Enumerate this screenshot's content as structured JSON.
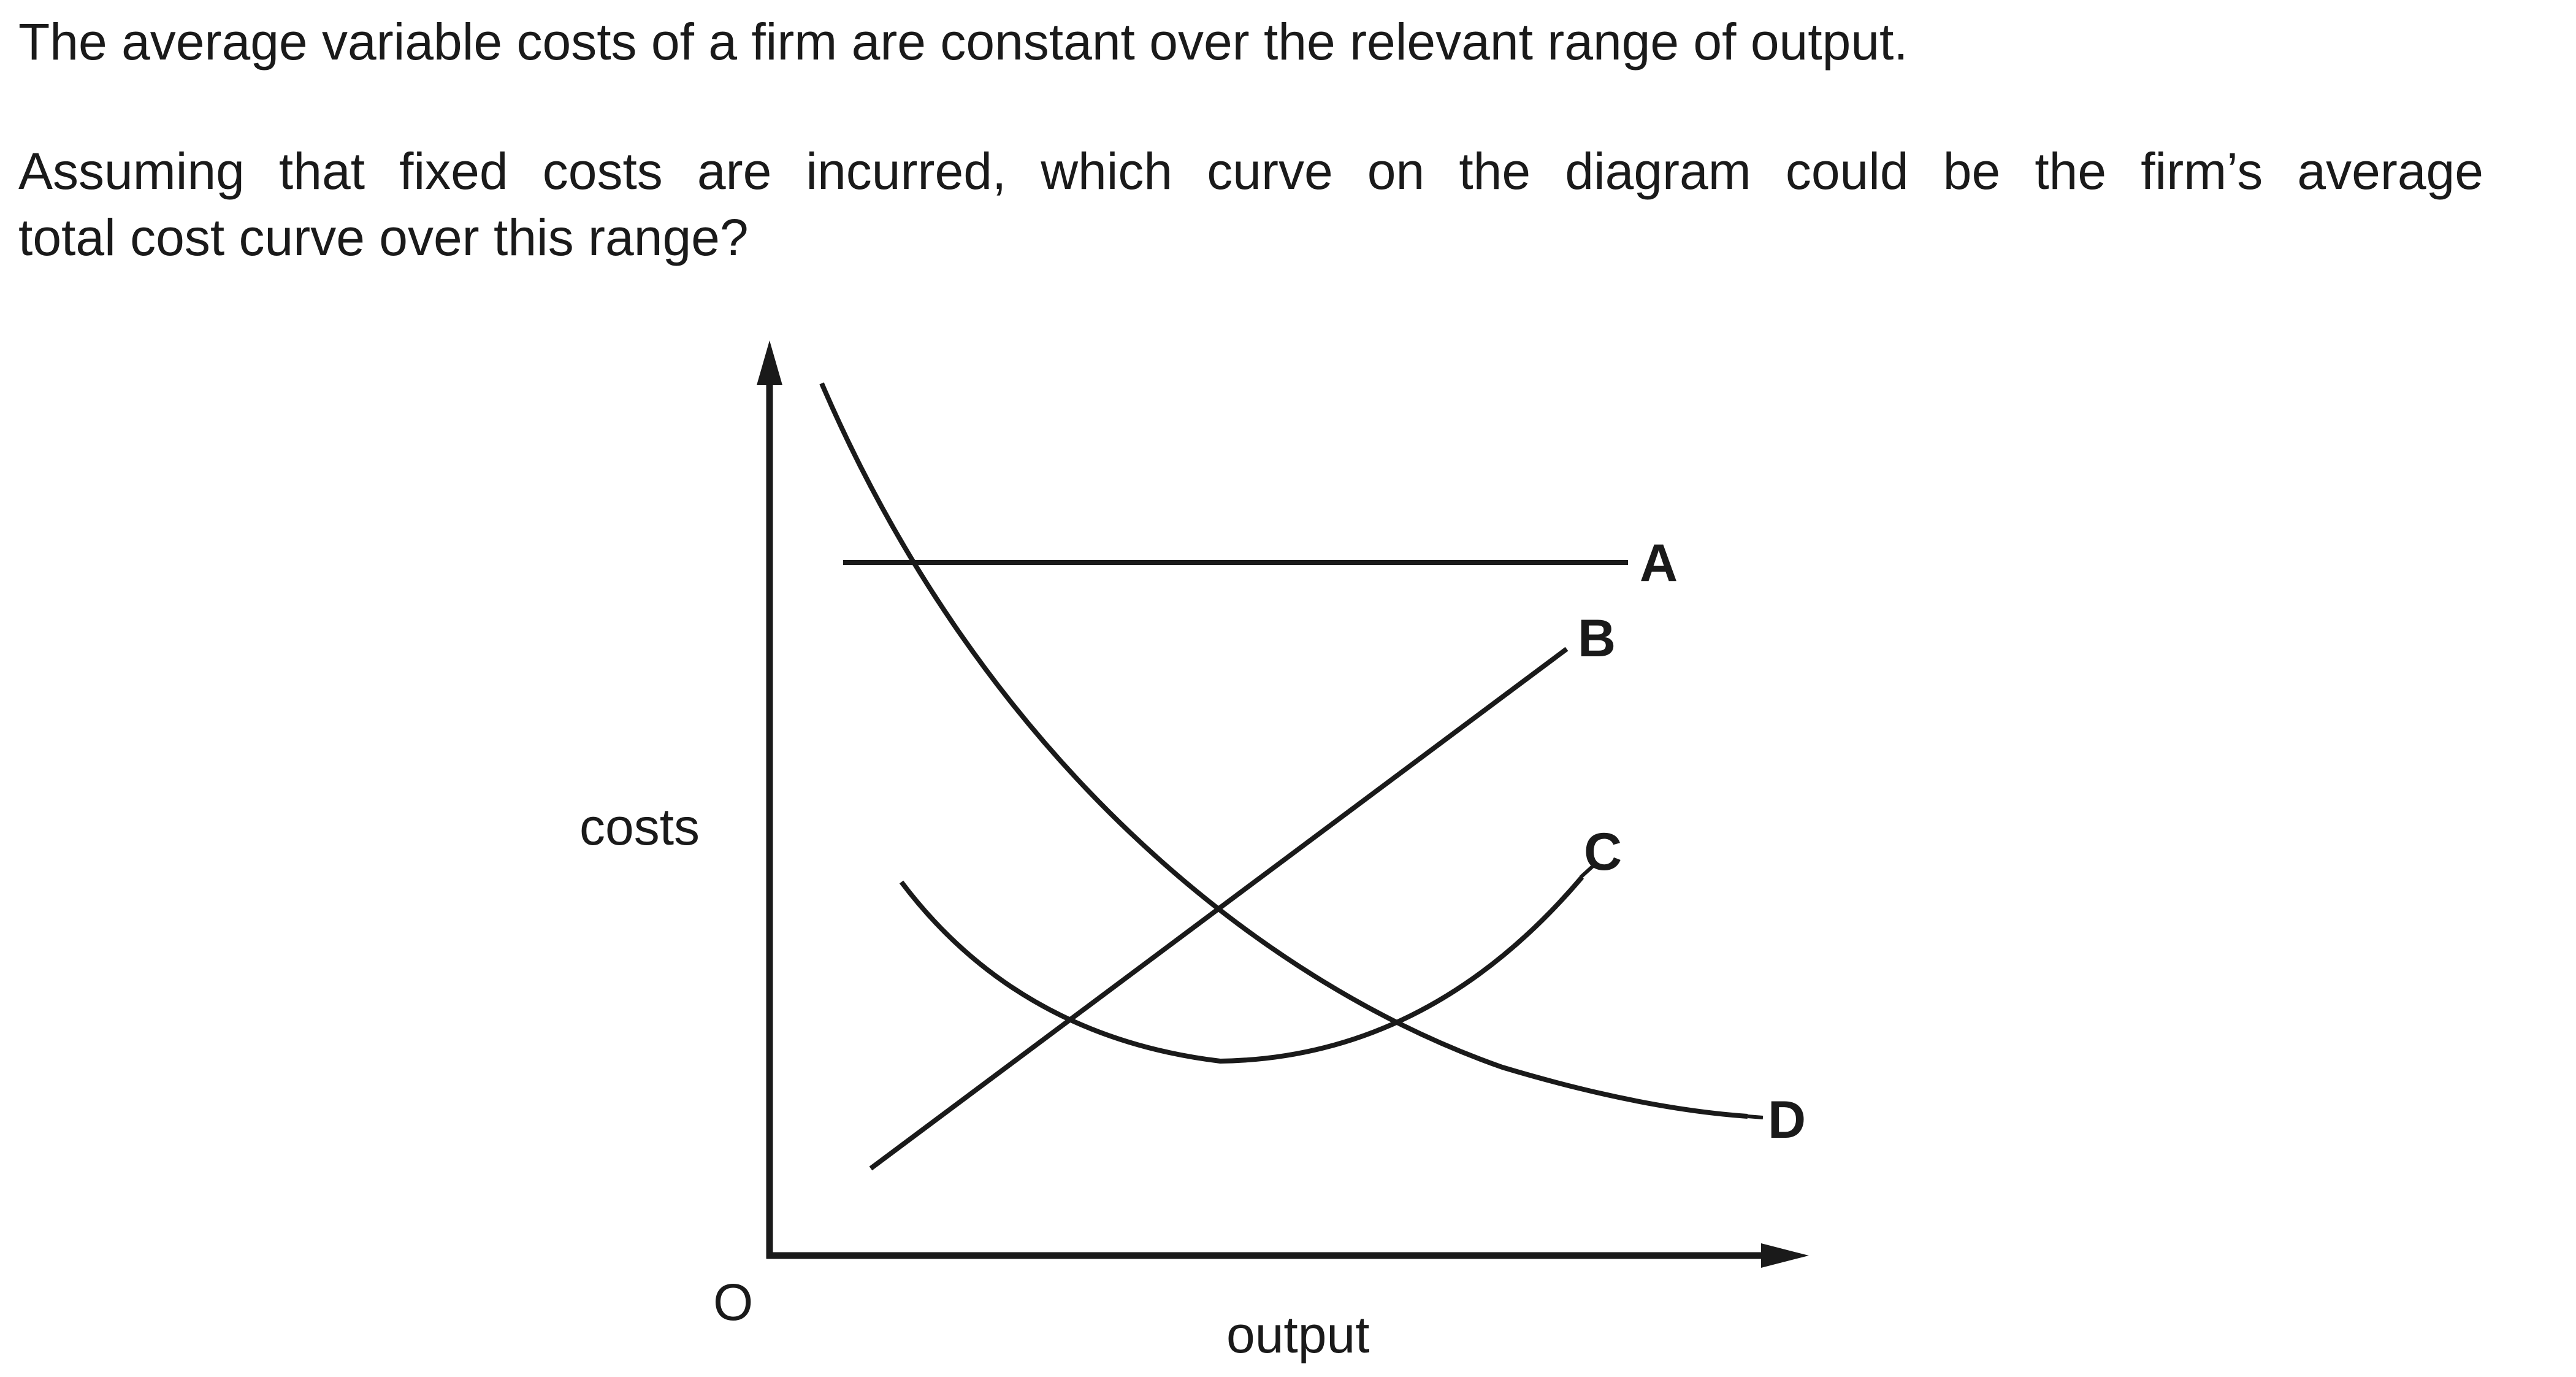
{
  "question": {
    "line1": "The average variable costs of a firm are constant over the relevant range of output.",
    "line2a": "Assuming that fixed costs are incurred, which curve on the diagram could be the firm’s average",
    "line2b": "total cost curve over this range?"
  },
  "diagram": {
    "y_axis_label": "costs",
    "x_axis_label": "output",
    "origin_label": "O",
    "curves": {
      "A": "A",
      "B": "B",
      "C": "C",
      "D": "D"
    }
  }
}
